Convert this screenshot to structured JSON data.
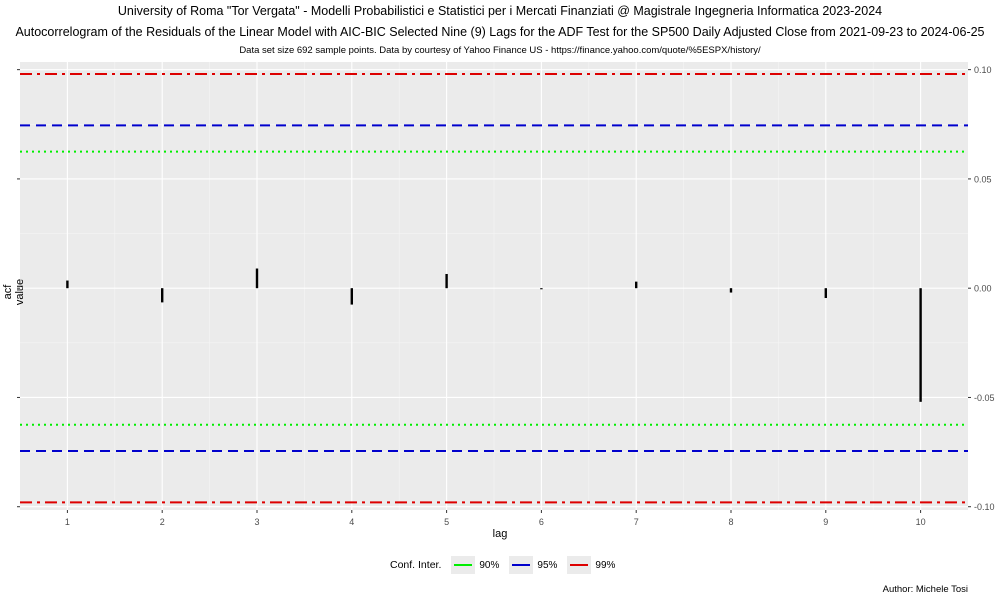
{
  "titles": {
    "title": "University of Roma \"Tor Vergata\" - Modelli Probabilistici e Statistici per i Mercati Finanziati @ Magistrale Ingegneria Informatica 2023-2024",
    "subtitle": "Autocorrelogram of the Residuals of the Linear Model with AIC-BIC Selected Nine (9) Lags for the ADF Test for the SP500 Daily Adjusted Close from 2021-09-23 to 2024-06-25",
    "caption": "Data set size 692 sample points. Data by courtesy of Yahoo Finance US - https://finance.yahoo.com/quote/%5ESPX/history/"
  },
  "author": "Author: Michele Tosi",
  "legend": {
    "title": "Conf. Inter.",
    "items": [
      {
        "label": "90%",
        "color": "#00ee00"
      },
      {
        "label": "95%",
        "color": "#0000cc"
      },
      {
        "label": "99%",
        "color": "#dd0000"
      }
    ]
  },
  "chart_data": {
    "type": "bar",
    "xlabel": "lag",
    "ylabel": "acf value",
    "x": [
      1,
      2,
      3,
      4,
      5,
      6,
      7,
      8,
      9,
      10
    ],
    "values": [
      0.0035,
      -0.0065,
      0.009,
      -0.0075,
      0.0065,
      -0.0005,
      0.003,
      -0.002,
      -0.0045,
      -0.052
    ],
    "ylim": [
      -0.1015,
      0.1035
    ],
    "xlim": [
      0.5,
      10.5
    ],
    "y_ticks": [
      0.1,
      0.05,
      0.0,
      -0.05,
      -0.1
    ],
    "y_tick_labels": [
      "0.10",
      "0.05",
      "0.00",
      "-0.05",
      "-0.10"
    ],
    "x_tick_labels": [
      "1",
      "2",
      "3",
      "4",
      "5",
      "6",
      "7",
      "8",
      "9",
      "10"
    ],
    "confidence_bands": [
      {
        "level": "90%",
        "value": 0.0625,
        "color": "#00ee00",
        "style": "dotted"
      },
      {
        "level": "95%",
        "value": 0.0745,
        "color": "#0000cc",
        "style": "dashed"
      },
      {
        "level": "99%",
        "value": 0.098,
        "color": "#dd0000",
        "style": "dotdash"
      }
    ],
    "grid": true,
    "background": "#ebebeb",
    "legend_position": "bottom"
  }
}
